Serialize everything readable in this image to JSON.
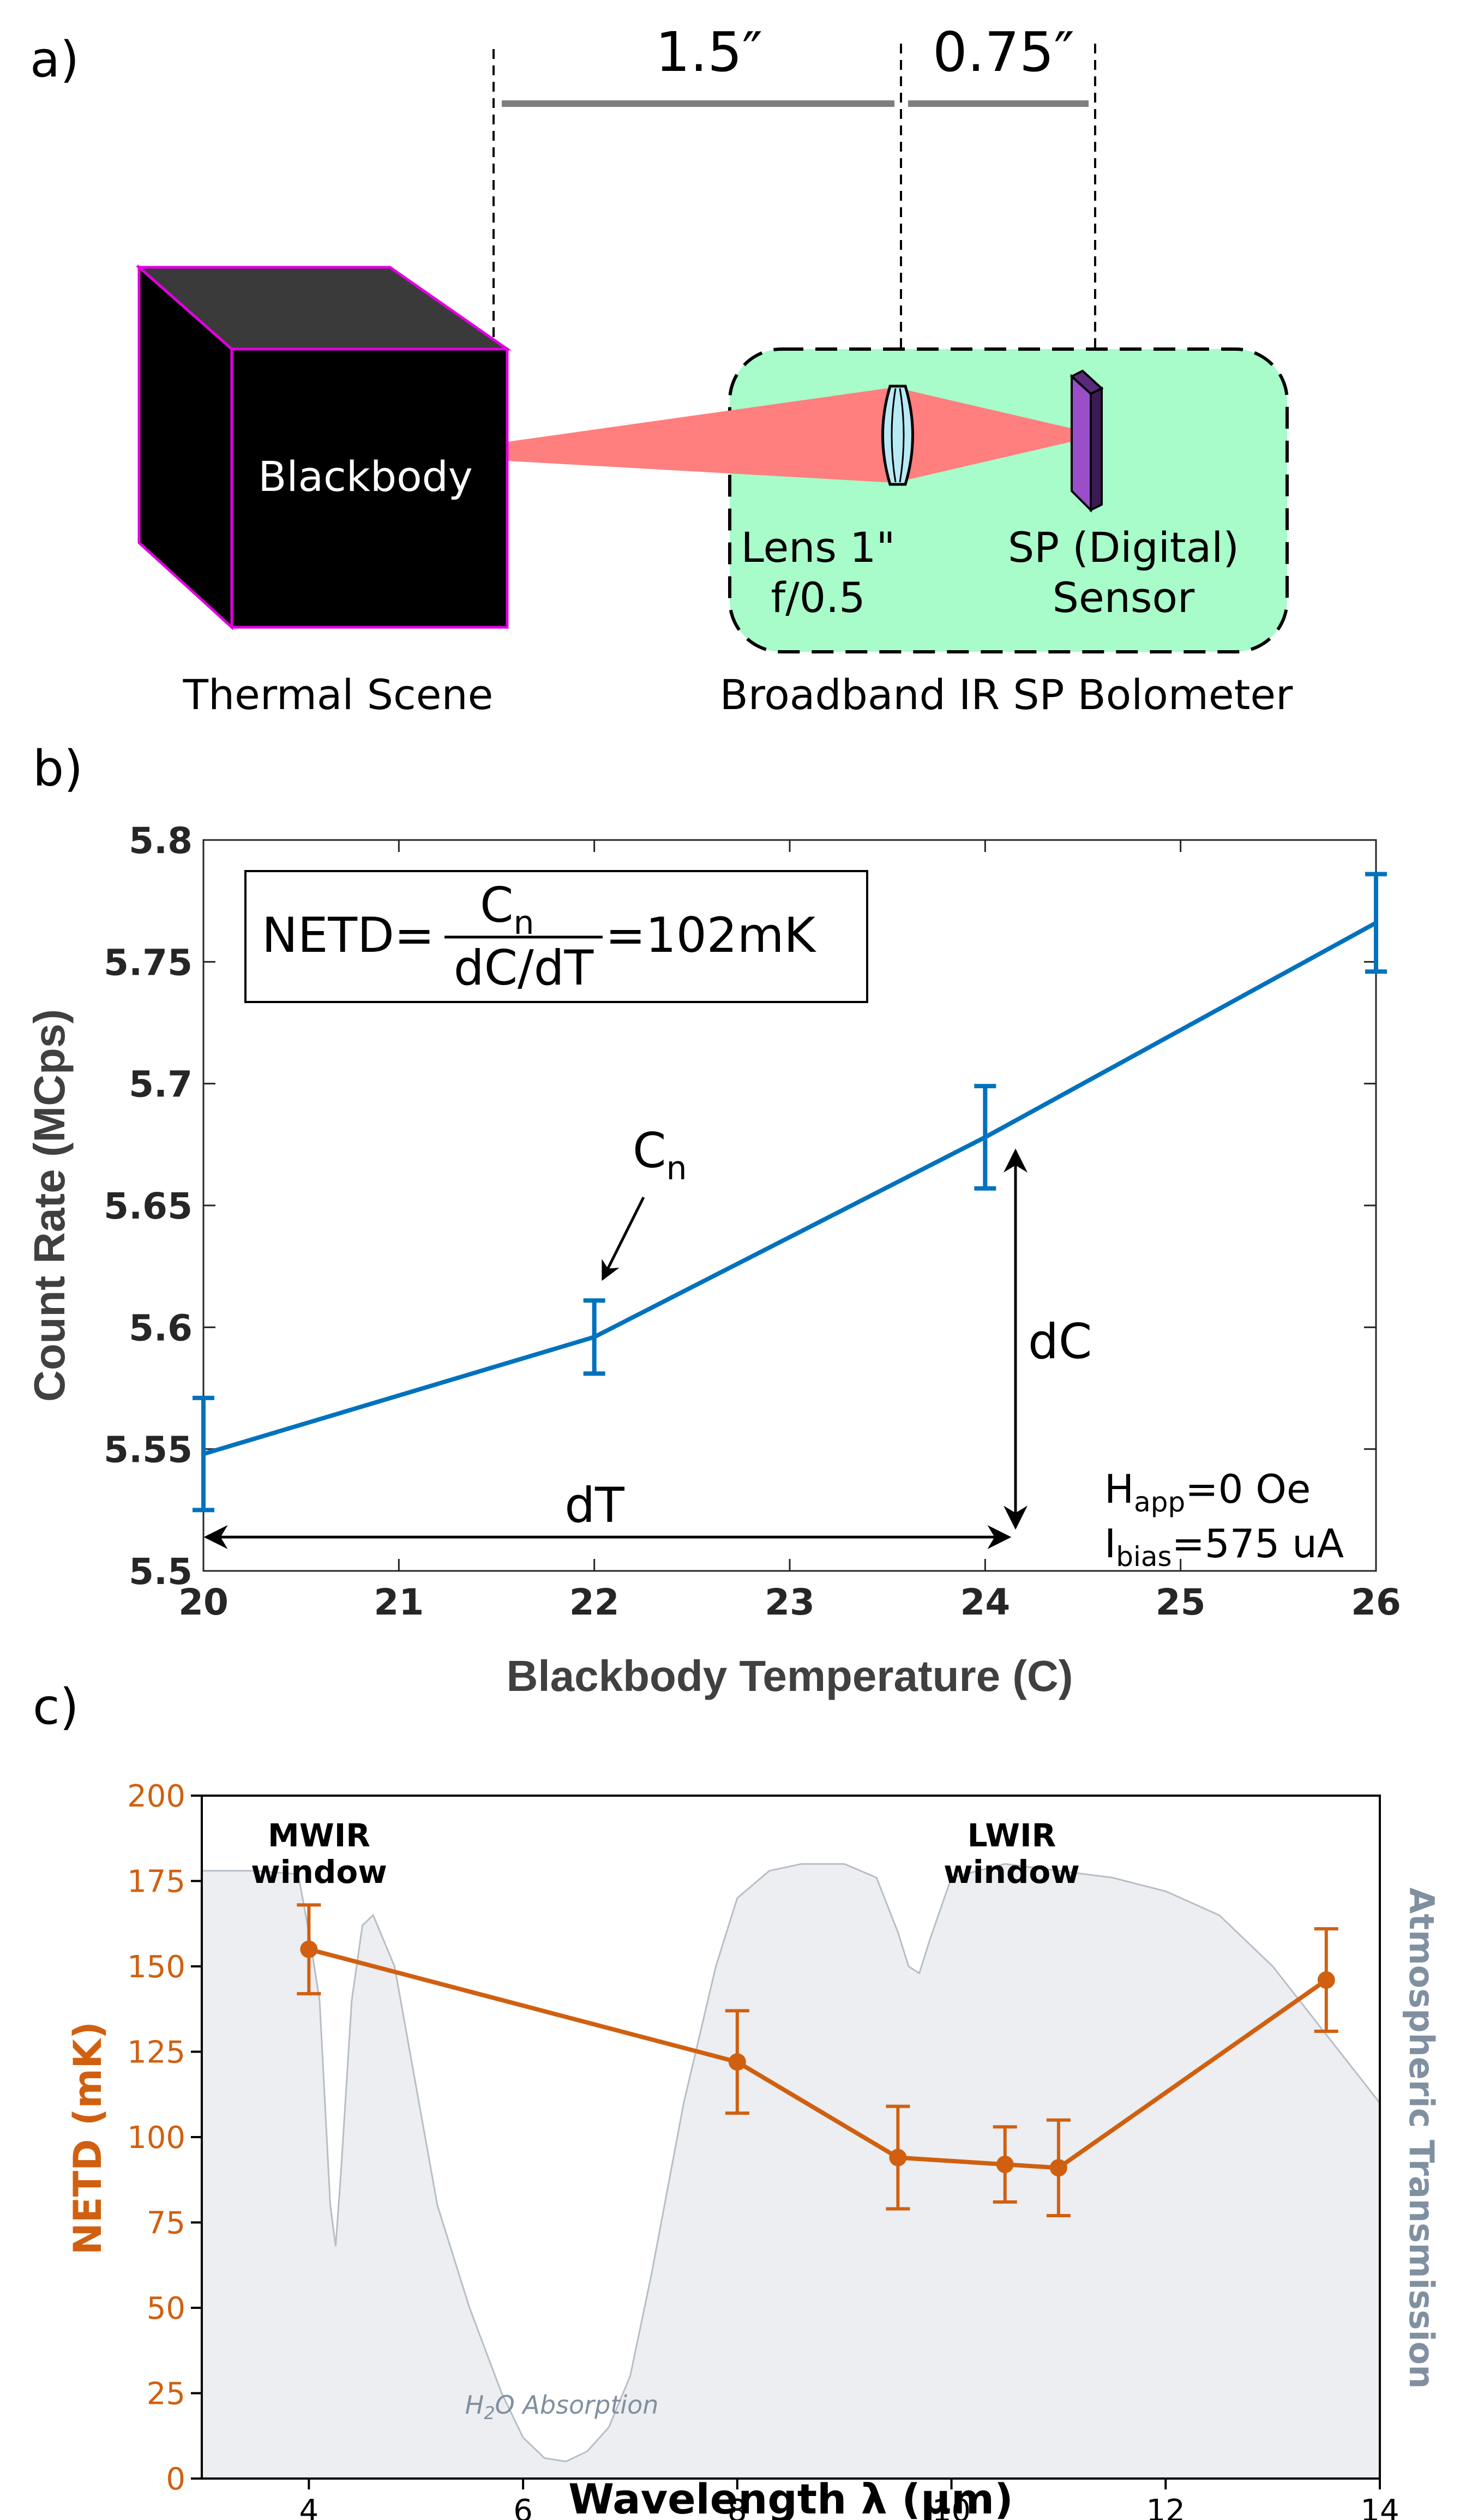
{
  "panel_a": {
    "label": "a)",
    "dim1": "1.5″",
    "dim2": "0.75″",
    "blackbody_label": "Blackbody",
    "lens_label_1": "Lens 1\"",
    "lens_label_2": "f/0.5",
    "sensor_label_1": "SP (Digital)",
    "sensor_label_2": "Sensor",
    "caption_left": "Thermal Scene",
    "caption_right": "Broadband IR SP Bolometer",
    "colors": {
      "box": "#a8fcc9",
      "beam": "#ff7e7e",
      "sensor": "#9a4fc9",
      "cube_edge": "#e000e0",
      "arrow": "#7f7f7f"
    }
  },
  "panel_b": {
    "label": "b)",
    "formula_lhs": "NETD=",
    "formula_num": "C",
    "formula_num_sub": "n",
    "formula_den": "dC/dT",
    "formula_rhs": "=102mK",
    "cn_label": "C",
    "cn_sub": "n",
    "dc_label": "dC",
    "dt_label": "dT",
    "happ_main": "H",
    "happ_sub": "app",
    "happ_val": "=0 Oe",
    "ibias_main": "I",
    "ibias_sub": "bias",
    "ibias_val": "=575 uA",
    "color": "#0072bd"
  },
  "panel_c": {
    "label": "c)",
    "mwir_1": "MWIR",
    "mwir_2": "window",
    "lwir_1": "LWIR",
    "lwir_2": "window",
    "h2o_label": "H2O Absorption",
    "h2o_pre": "H",
    "h2o_sub": "2",
    "h2o_post": "O Absorption",
    "right_label": "Atmospheric Transmission",
    "netd_color": "#d06010",
    "trans_color": "#8090a0"
  },
  "chart_data": [
    {
      "type": "line",
      "title": "",
      "xlabel": "Blackbody Temperature (C)",
      "ylabel": "Count Rate (MCps)",
      "xlim": [
        20,
        26
      ],
      "ylim": [
        5.5,
        5.8
      ],
      "xticks": [
        20,
        21,
        22,
        23,
        24,
        25,
        26
      ],
      "yticks": [
        5.5,
        5.55,
        5.6,
        5.65,
        5.7,
        5.75,
        5.8
      ],
      "ytick_labels": [
        "5.5",
        "5.55",
        "5.6",
        "5.65",
        "5.7",
        "5.75",
        "5.8"
      ],
      "series": [
        {
          "name": "Count Rate",
          "x": [
            20,
            22,
            24,
            26
          ],
          "y": [
            5.548,
            5.596,
            5.678,
            5.766
          ],
          "err": [
            0.023,
            0.015,
            0.021,
            0.02
          ]
        }
      ]
    },
    {
      "type": "line",
      "title": "",
      "xlabel": "Wavelength λ (μm)",
      "ylabel": "NETD (mK)",
      "y2label": "Atmospheric Transmission",
      "xlim": [
        3,
        14
      ],
      "ylim": [
        0,
        200
      ],
      "xticks": [
        4,
        6,
        8,
        10,
        12,
        14
      ],
      "yticks": [
        0,
        25,
        50,
        75,
        100,
        125,
        150,
        175,
        200
      ],
      "series": [
        {
          "name": "NETD",
          "x": [
            4,
            8,
            9.5,
            10.5,
            11,
            13.5
          ],
          "y": [
            155,
            122,
            94,
            92,
            91,
            146
          ],
          "err": [
            13,
            15,
            15,
            11,
            14,
            15
          ]
        },
        {
          "name": "Atmospheric Transmission",
          "x": [
            3.0,
            3.5,
            3.9,
            4.0,
            4.1,
            4.15,
            4.2,
            4.25,
            4.3,
            4.4,
            4.5,
            4.6,
            4.8,
            5.0,
            5.2,
            5.5,
            5.8,
            6.0,
            6.2,
            6.4,
            6.6,
            6.8,
            7.0,
            7.2,
            7.5,
            7.8,
            8.0,
            8.3,
            8.6,
            9.0,
            9.3,
            9.5,
            9.6,
            9.7,
            9.8,
            10.0,
            10.5,
            11.0,
            11.5,
            12.0,
            12.5,
            13.0,
            13.5,
            14.0
          ],
          "y": [
            178,
            178,
            177,
            160,
            140,
            110,
            80,
            68,
            90,
            140,
            162,
            165,
            150,
            115,
            80,
            50,
            25,
            12,
            6,
            5,
            8,
            15,
            30,
            60,
            110,
            150,
            170,
            178,
            180,
            180,
            176,
            160,
            150,
            148,
            158,
            176,
            180,
            178,
            176,
            172,
            165,
            150,
            130,
            110
          ]
        }
      ]
    }
  ]
}
